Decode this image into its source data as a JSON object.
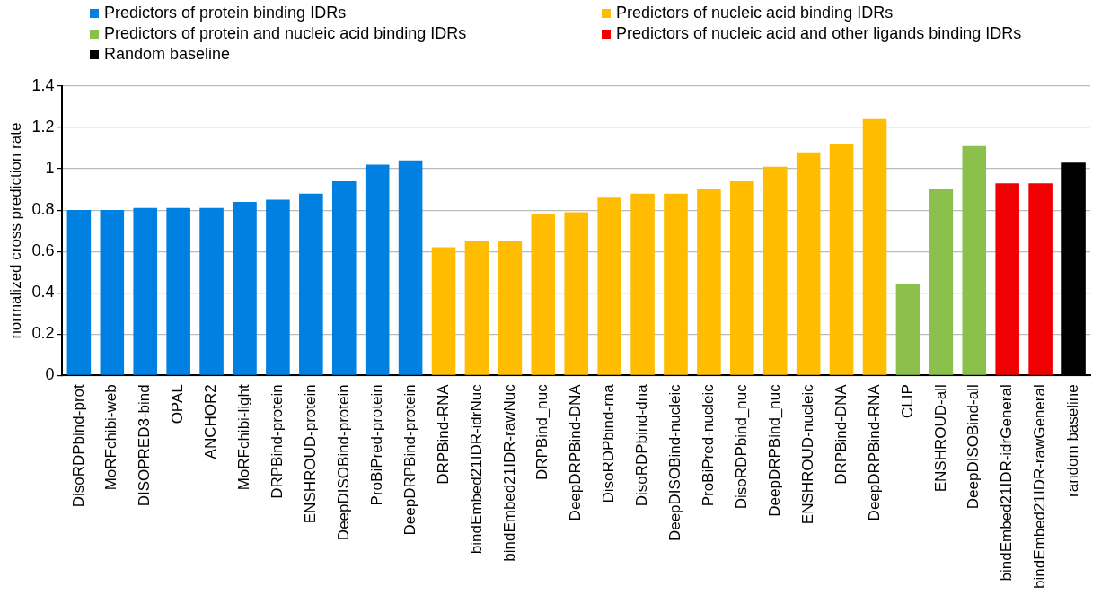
{
  "chart_data": {
    "type": "bar",
    "ylabel": "normalized cross prediction rate",
    "categories": [
      "DisoRDPbind-prot",
      "MoRFchibi-web",
      "DISOPRED3-bind",
      "OPAL",
      "ANCHOR2",
      "MoRFchibi-light",
      "DRPBind-protein",
      "ENSHROUD-protein",
      "DeepDISOBind-protein",
      "ProBiPred-protein",
      "DeepDRPBind-protein",
      "DRPBind-RNA",
      "bindEmbed21IDR-idrNuc",
      "bindEmbed21IDR-rawNuc",
      "DRPBind_nuc",
      "DeepDRPBind-DNA",
      "DisoRDPbind-rna",
      "DisoRDPbind-dna",
      "DeepDISOBind-nucleic",
      "ProBiPred-nucleic",
      "DisoRDPbind_nuc",
      "DeepDRPBind_nuc",
      "ENSHROUD-nucleic",
      "DRPBind-DNA",
      "DeepDRPBind-RNA",
      "CLIP",
      "ENSHROUD-all",
      "DeepDISOBind-all",
      "bindEmbed21IDR-idrGeneral",
      "bindEmbed21IDR-rawGeneral",
      "random baseline"
    ],
    "series": [
      {
        "name": "Predictors of protein binding IDRs",
        "color": "#0080e0",
        "values": [
          0.8,
          0.8,
          0.81,
          0.81,
          0.81,
          0.84,
          0.85,
          0.88,
          0.94,
          1.02,
          1.04,
          null,
          null,
          null,
          null,
          null,
          null,
          null,
          null,
          null,
          null,
          null,
          null,
          null,
          null,
          null,
          null,
          null,
          null,
          null,
          null
        ]
      },
      {
        "name": "Predictors of nucleic acid binding IDRs",
        "color": "#ffbc00",
        "values": [
          null,
          null,
          null,
          null,
          null,
          null,
          null,
          null,
          null,
          null,
          null,
          0.62,
          0.65,
          0.65,
          0.78,
          0.79,
          0.86,
          0.88,
          0.88,
          0.9,
          0.94,
          1.01,
          1.08,
          1.12,
          1.24,
          null,
          null,
          null,
          null,
          null,
          null
        ]
      },
      {
        "name": "Predictors of protein and nucleic acid binding IDRs",
        "color": "#8bc04c",
        "values": [
          null,
          null,
          null,
          null,
          null,
          null,
          null,
          null,
          null,
          null,
          null,
          null,
          null,
          null,
          null,
          null,
          null,
          null,
          null,
          null,
          null,
          null,
          null,
          null,
          null,
          0.44,
          0.9,
          1.11,
          null,
          null,
          null
        ]
      },
      {
        "name": "Predictors of nucleic acid and other ligands binding IDRs",
        "color": "#f00000",
        "values": [
          null,
          null,
          null,
          null,
          null,
          null,
          null,
          null,
          null,
          null,
          null,
          null,
          null,
          null,
          null,
          null,
          null,
          null,
          null,
          null,
          null,
          null,
          null,
          null,
          null,
          null,
          null,
          null,
          0.93,
          0.93,
          null
        ]
      },
      {
        "name": "Random baseline",
        "color": "#000000",
        "values": [
          null,
          null,
          null,
          null,
          null,
          null,
          null,
          null,
          null,
          null,
          null,
          null,
          null,
          null,
          null,
          null,
          null,
          null,
          null,
          null,
          null,
          null,
          null,
          null,
          null,
          null,
          null,
          null,
          null,
          null,
          1.03
        ]
      }
    ],
    "ylim": [
      0,
      1.4
    ],
    "yticks": [
      0,
      {
        "value": 0.2,
        "label": "0.2"
      },
      {
        "value": 0.4,
        "label": "0.4"
      },
      {
        "value": 0.6,
        "label": "0.6"
      },
      {
        "value": 0.8,
        "label": "0.8"
      },
      1,
      {
        "value": 1.2,
        "label": "1.2"
      },
      {
        "value": 1.4,
        "label": "1.4"
      }
    ],
    "grid": "y",
    "legend": "top"
  }
}
